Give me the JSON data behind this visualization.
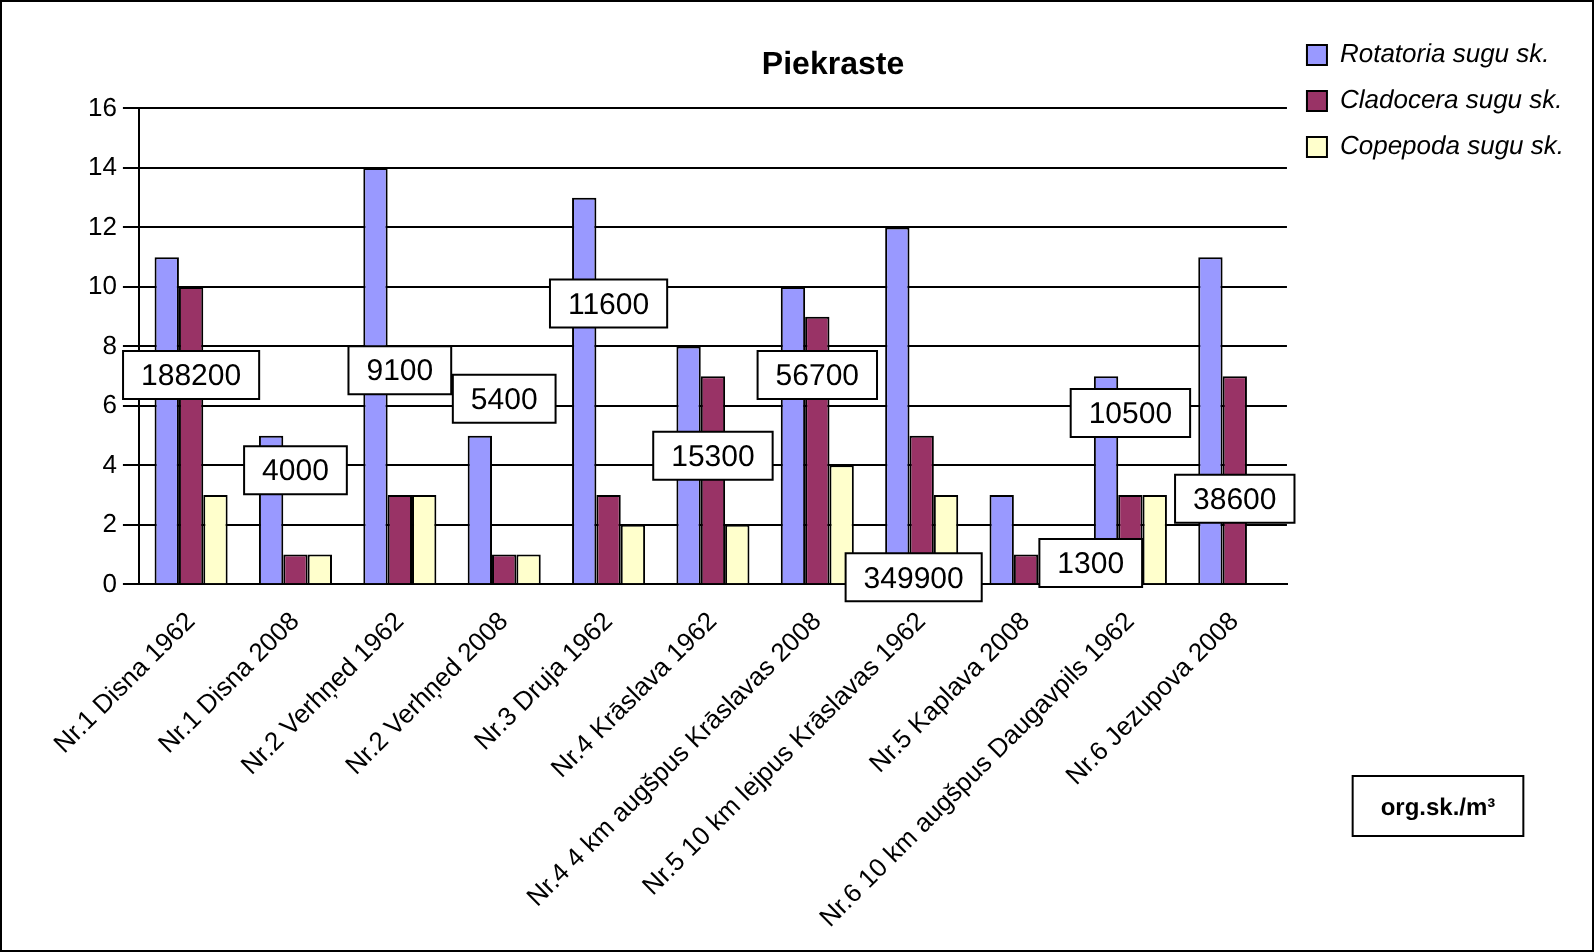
{
  "chart_data": {
    "type": "bar",
    "title": "Piekraste",
    "categories": [
      "Nr.1 Disna 1962",
      "Nr.1 Disna 2008",
      "Nr.2 Verhņed 1962",
      "Nr.2 Verhņed 2008",
      "Nr.3 Druja 1962",
      "Nr.4 Krāslava 1962",
      "Nr.4 4 km augšpus Krāslavas 2008",
      "Nr.5 10 km lejpus Krāslavas 1962",
      "Nr.5 Kaplava 2008",
      "Nr.6 10 km augšpus Daugavpils 1962",
      "Nr.6 Jezupova 2008"
    ],
    "series": [
      {
        "name": "Rotatoria sugu sk.",
        "color": "#9999ff",
        "values": [
          11,
          5,
          14,
          5,
          13,
          8,
          10,
          12,
          3,
          7,
          11
        ]
      },
      {
        "name": "Cladocera sugu sk.",
        "color": "#993366",
        "values": [
          10,
          1,
          3,
          1,
          3,
          7,
          9,
          5,
          1,
          3,
          7
        ]
      },
      {
        "name": "Copepoda sugu sk.",
        "color": "#ffffcc",
        "values": [
          3,
          1,
          3,
          1,
          2,
          2,
          4,
          3,
          null,
          3,
          null
        ]
      }
    ],
    "ylim": [
      0,
      16
    ],
    "yticks": [
      0,
      2,
      4,
      6,
      8,
      10,
      12,
      14,
      16
    ],
    "grid": "y",
    "legend": "top right",
    "annotations": [
      "188200",
      "4000",
      "9100",
      "5400",
      "11600",
      "15300",
      "56700",
      "349900",
      "1300",
      "10500",
      "38600",
      "org.sk./m³"
    ]
  }
}
